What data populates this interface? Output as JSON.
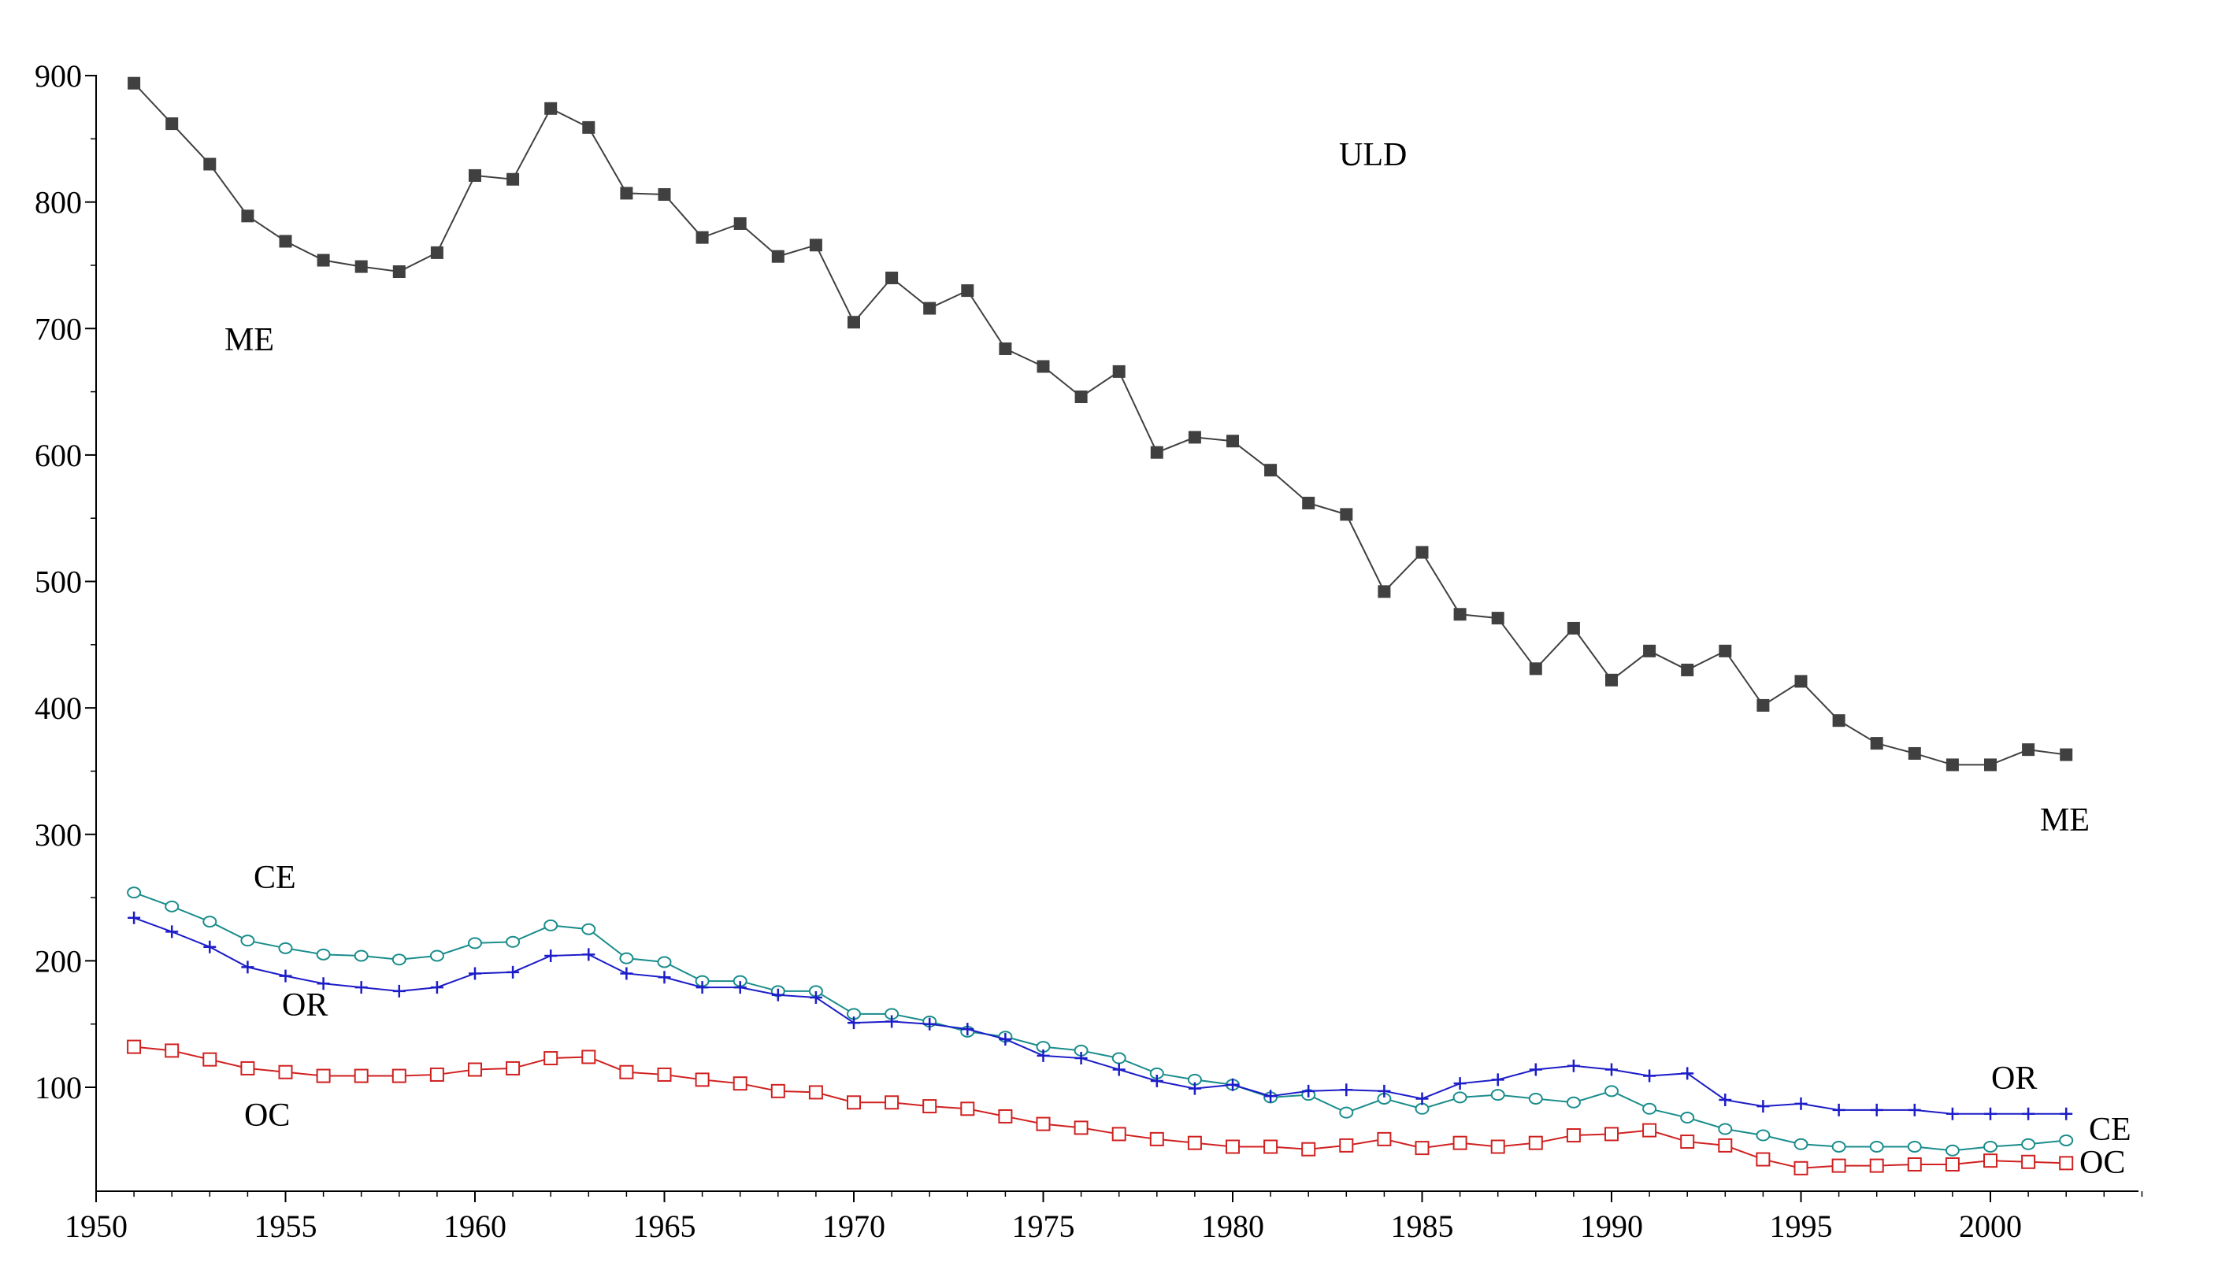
{
  "chart_data": {
    "type": "line",
    "title": "",
    "xlabel": "",
    "ylabel": "",
    "xlim": [
      1950,
      2004
    ],
    "ylim": [
      20,
      910
    ],
    "x_ticks": [
      "1950",
      "1955",
      "1960",
      "1965",
      "1970",
      "1975",
      "1980",
      "1985",
      "1990",
      "1995",
      "2000"
    ],
    "y_ticks": [
      "100",
      "200",
      "300",
      "400",
      "500",
      "600",
      "700",
      "800",
      "900"
    ],
    "grid": false,
    "x": [
      1951,
      1952,
      1953,
      1954,
      1955,
      1956,
      1957,
      1958,
      1959,
      1960,
      1961,
      1962,
      1963,
      1964,
      1965,
      1966,
      1967,
      1968,
      1969,
      1970,
      1971,
      1972,
      1973,
      1974,
      1975,
      1976,
      1977,
      1978,
      1979,
      1980,
      1981,
      1982,
      1983,
      1984,
      1985,
      1986,
      1987,
      1988,
      1989,
      1990,
      1991,
      1992,
      1993,
      1994,
      1995,
      1996,
      1997,
      1998,
      1999,
      2000,
      2001,
      2002
    ],
    "series": [
      {
        "key": "me",
        "color": "#404040",
        "marker": "filled-square",
        "values": [
          894,
          862,
          830,
          789,
          769,
          754,
          749,
          745,
          760,
          821,
          818,
          874,
          859,
          807,
          806,
          772,
          783,
          757,
          766,
          705,
          740,
          716,
          730,
          684,
          670,
          646,
          666,
          602,
          614,
          611,
          588,
          562,
          553,
          492,
          523,
          474,
          471,
          431,
          463,
          422,
          445,
          430,
          445,
          402,
          421,
          390,
          372,
          364,
          355,
          355,
          367,
          363
        ]
      },
      {
        "key": "ce",
        "color": "#1a8c8c",
        "marker": "open-circle",
        "values": [
          254,
          243,
          231,
          216,
          210,
          205,
          204,
          201,
          204,
          214,
          215,
          228,
          225,
          202,
          199,
          184,
          184,
          176,
          176,
          158,
          158,
          152,
          144,
          140,
          132,
          129,
          123,
          111,
          106,
          102,
          92,
          94,
          80,
          91,
          83,
          92,
          94,
          91,
          88,
          97,
          83,
          76,
          67,
          62,
          55,
          53,
          53,
          53,
          50,
          53,
          55,
          58
        ]
      },
      {
        "key": "or",
        "color": "#1c1cc8",
        "marker": "plus",
        "values": [
          234,
          223,
          211,
          195,
          188,
          182,
          179,
          176,
          179,
          190,
          191,
          204,
          205,
          190,
          187,
          179,
          179,
          173,
          171,
          151,
          152,
          150,
          146,
          138,
          125,
          123,
          114,
          105,
          99,
          102,
          93,
          97,
          98,
          97,
          91,
          103,
          106,
          114,
          117,
          114,
          109,
          111,
          90,
          85,
          87,
          82,
          82,
          82,
          79,
          79,
          79,
          79
        ]
      },
      {
        "key": "oc",
        "color": "#d02020",
        "marker": "open-square",
        "values": [
          132,
          129,
          122,
          115,
          112,
          109,
          109,
          109,
          110,
          114,
          115,
          123,
          124,
          112,
          110,
          106,
          103,
          97,
          96,
          88,
          88,
          85,
          83,
          77,
          71,
          68,
          63,
          59,
          56,
          53,
          53,
          51,
          54,
          59,
          52,
          56,
          53,
          56,
          62,
          63,
          66,
          57,
          54,
          43,
          36,
          38,
          38,
          39,
          39,
          42,
          41,
          40
        ]
      }
    ],
    "annotations": {
      "uld": "ULD",
      "me_left": "ME",
      "me_right": "ME",
      "ce_left": "CE",
      "ce_right": "CE",
      "or_left": "OR",
      "or_right": "OR",
      "oc_left": "OC",
      "oc_right": "OC"
    }
  }
}
